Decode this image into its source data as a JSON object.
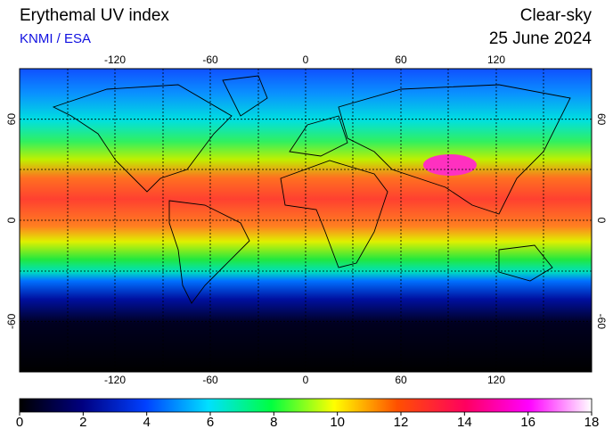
{
  "header": {
    "title": "Erythemal UV index",
    "source": "KNMI / ESA",
    "condition": "Clear-sky",
    "date": "25 June 2024"
  },
  "map": {
    "lon_range": [
      -180,
      180
    ],
    "lat_range": [
      90,
      -90
    ],
    "lon_ticks": [
      -120,
      -60,
      0,
      60,
      120
    ],
    "lat_ticks": [
      60,
      0,
      -60
    ]
  },
  "colorbar": {
    "range": [
      0,
      18
    ],
    "ticks": [
      0,
      2,
      4,
      6,
      8,
      10,
      12,
      14,
      16,
      18
    ]
  }
}
